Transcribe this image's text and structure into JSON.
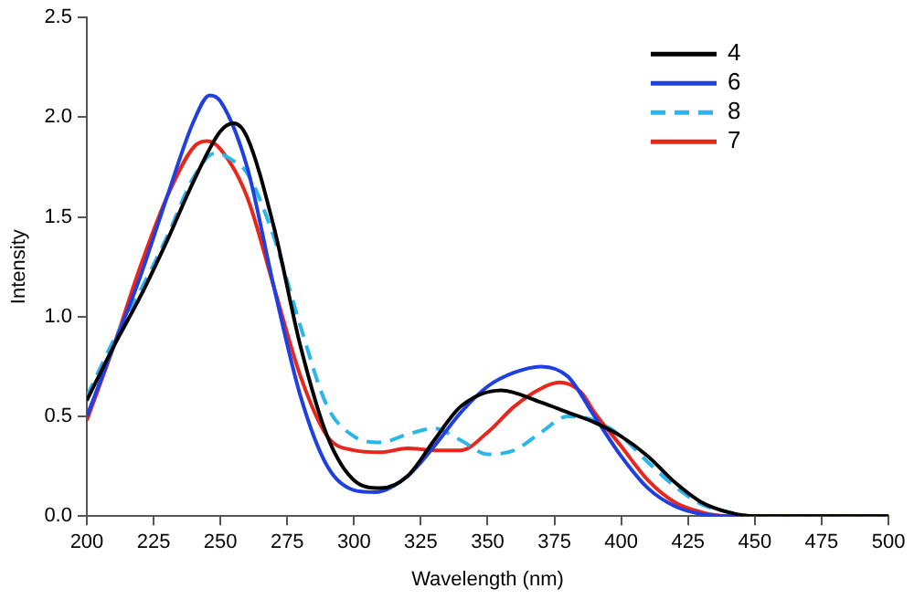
{
  "chart_data": {
    "type": "line",
    "xlabel": "Wavelength (nm)",
    "ylabel": "Intensity",
    "xlim": [
      200,
      500
    ],
    "xticks": [
      200,
      225,
      250,
      275,
      300,
      325,
      350,
      375,
      400,
      425,
      450,
      475,
      500
    ],
    "ylim": [
      0,
      2.5
    ],
    "yticks": [
      {
        "value": 0,
        "label": "0.0"
      },
      0.5,
      {
        "value": 1,
        "label": "1.0"
      },
      1.5,
      {
        "value": 2,
        "label": "2.0"
      },
      2.5
    ],
    "grid": false,
    "legend": "top right",
    "marker": "none",
    "series": [
      {
        "name": "4",
        "color": "#000000",
        "line_style": "solid",
        "x": [
          200,
          210,
          220,
          230,
          240,
          250,
          255,
          260,
          270,
          280,
          290,
          300,
          310,
          320,
          330,
          340,
          355,
          370,
          380,
          390,
          400,
          410,
          420,
          430,
          440,
          450,
          500
        ],
        "values": [
          0.58,
          0.85,
          1.1,
          1.38,
          1.68,
          1.93,
          1.97,
          1.9,
          1.45,
          0.85,
          0.4,
          0.18,
          0.14,
          0.2,
          0.38,
          0.55,
          0.63,
          0.57,
          0.52,
          0.47,
          0.4,
          0.3,
          0.17,
          0.07,
          0.02,
          0,
          0
        ]
      },
      {
        "name": "6",
        "color": "#1f3fe0",
        "line_style": "solid",
        "x": [
          200,
          210,
          220,
          230,
          240,
          246,
          250,
          260,
          270,
          280,
          290,
          300,
          308,
          320,
          330,
          340,
          350,
          360,
          370,
          380,
          390,
          400,
          410,
          420,
          430,
          440,
          500
        ],
        "values": [
          0.5,
          0.85,
          1.2,
          1.6,
          1.98,
          2.11,
          2.08,
          1.75,
          1.15,
          0.6,
          0.25,
          0.13,
          0.12,
          0.2,
          0.35,
          0.52,
          0.65,
          0.72,
          0.75,
          0.7,
          0.5,
          0.3,
          0.14,
          0.05,
          0.01,
          0,
          0
        ]
      },
      {
        "name": "8",
        "color": "#29b6ea",
        "line_style": "dashed",
        "x": [
          200,
          210,
          220,
          230,
          240,
          248,
          255,
          260,
          270,
          280,
          290,
          300,
          310,
          320,
          330,
          340,
          350,
          360,
          370,
          380,
          390,
          400,
          410,
          420,
          430,
          440,
          450,
          500
        ],
        "values": [
          0.6,
          0.88,
          1.13,
          1.4,
          1.7,
          1.82,
          1.78,
          1.72,
          1.4,
          0.95,
          0.55,
          0.4,
          0.37,
          0.41,
          0.44,
          0.38,
          0.31,
          0.33,
          0.42,
          0.5,
          0.48,
          0.4,
          0.27,
          0.15,
          0.06,
          0.02,
          0,
          0
        ]
      },
      {
        "name": "7",
        "color": "#e8261c",
        "line_style": "solid",
        "x": [
          200,
          210,
          220,
          230,
          240,
          245,
          250,
          260,
          270,
          280,
          290,
          300,
          310,
          320,
          330,
          340,
          350,
          360,
          370,
          377,
          385,
          390,
          400,
          410,
          420,
          430,
          440,
          500
        ],
        "values": [
          0.48,
          0.85,
          1.25,
          1.6,
          1.85,
          1.88,
          1.84,
          1.6,
          1.15,
          0.7,
          0.4,
          0.33,
          0.32,
          0.34,
          0.33,
          0.33,
          0.42,
          0.55,
          0.64,
          0.67,
          0.62,
          0.52,
          0.35,
          0.18,
          0.07,
          0.02,
          0,
          0
        ]
      }
    ]
  }
}
